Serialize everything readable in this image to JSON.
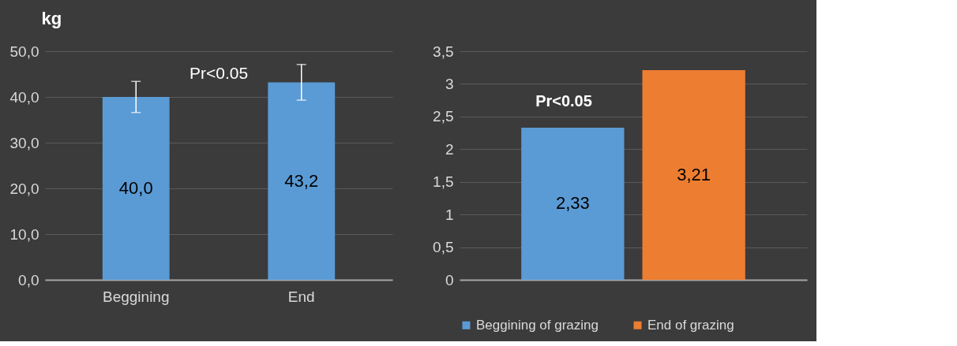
{
  "chart_data": [
    {
      "type": "bar",
      "ylabel": "kg",
      "categories": [
        "Beggining",
        "End"
      ],
      "series": [
        {
          "color": "#5b9bd5",
          "values": [
            40.0,
            43.2
          ],
          "value_labels": [
            "40,0",
            "43,2"
          ],
          "errors": [
            [
              36.6,
              43.4
            ],
            [
              39.3,
              47.1
            ]
          ]
        }
      ],
      "ylim": [
        0,
        50
      ],
      "yticks": [
        {
          "value": 0,
          "label": "0,0"
        },
        {
          "value": 10,
          "label": "10,0"
        },
        {
          "value": 20,
          "label": "20,0"
        },
        {
          "value": 30,
          "label": "30,0"
        },
        {
          "value": 40,
          "label": "40,0"
        },
        {
          "value": 50,
          "label": "50,0"
        }
      ],
      "annotations": [
        "Pr<0.05"
      ],
      "grid": "y"
    },
    {
      "type": "bar",
      "categories": [
        null
      ],
      "series": [
        {
          "name": "Beggining of grazing",
          "color": "#5b9bd5",
          "values": [
            2.33
          ],
          "value_labels": [
            "2,33"
          ]
        },
        {
          "name": "End of grazing",
          "color": "#ed7d31",
          "values": [
            3.21
          ],
          "value_labels": [
            "3,21"
          ]
        }
      ],
      "ylim": [
        0,
        3.5
      ],
      "yticks": [
        0,
        {
          "value": 0.5,
          "label": "0,5"
        },
        1,
        {
          "value": 1.5,
          "label": "1,5"
        },
        2,
        {
          "value": 2.5,
          "label": "2,5"
        },
        3,
        {
          "value": 3.5,
          "label": "3,5"
        }
      ],
      "annotations": [
        "Pr<0.05"
      ],
      "grid": "y",
      "legend": "bottom"
    }
  ]
}
